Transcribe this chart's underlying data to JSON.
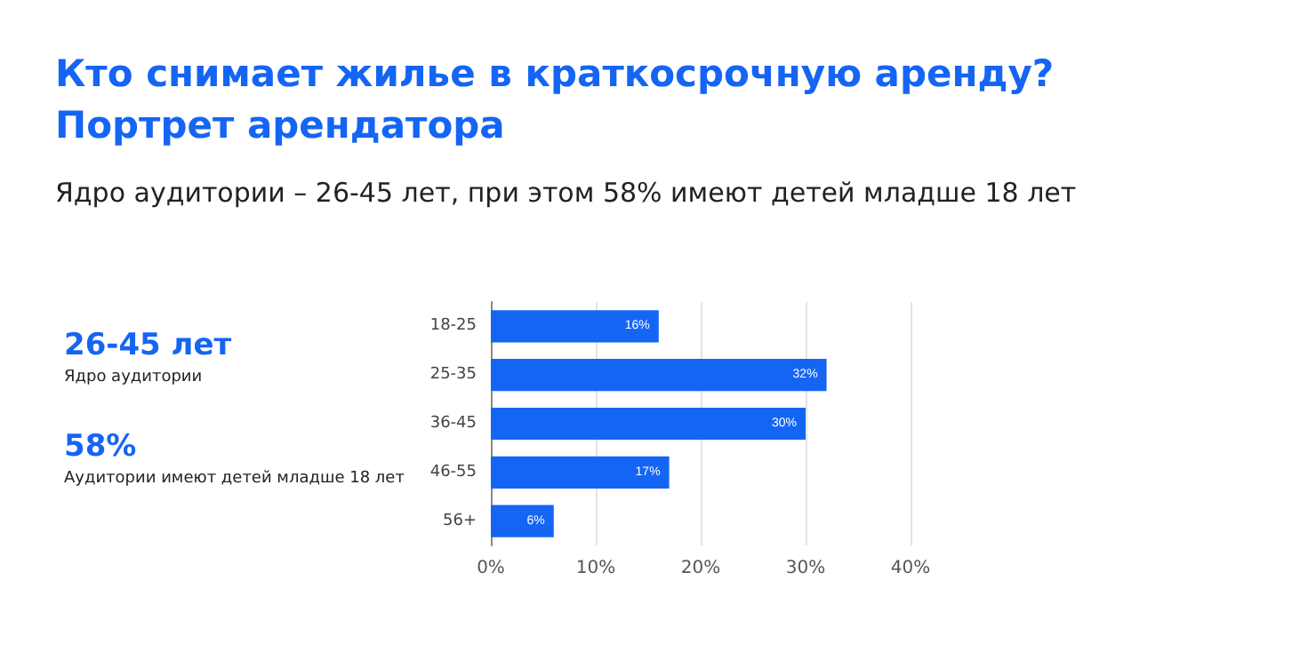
{
  "chart_data": {
    "type": "bar",
    "orientation": "horizontal",
    "title": "Кто снимает жилье в краткосрочную аренду?\nПортрет арендатора",
    "subtitle": "Ядро аудитории – 26-45 лет, при этом 58% имеют детей младше 18 лет",
    "annotations": [
      "26-45 лет",
      "Ядро аудитории",
      "58%",
      "Аудитории имеют детей младше 18 лет"
    ],
    "categories": [
      "18-25",
      "25-35",
      "36-45",
      "46-55",
      "56+"
    ],
    "values": [
      16,
      32,
      30,
      17,
      6
    ],
    "value_labels": [
      "16%",
      "32%",
      "30%",
      "17%",
      "6%"
    ],
    "color": "#1565f5",
    "xlim": [
      0,
      40
    ],
    "xticks": [
      {
        "value": 0,
        "label": "0%"
      },
      {
        "value": 10,
        "label": "10%"
      },
      {
        "value": 20,
        "label": "20%"
      },
      {
        "value": 30,
        "label": "30%"
      },
      {
        "value": 40,
        "label": "40%"
      }
    ],
    "grid": "x"
  }
}
